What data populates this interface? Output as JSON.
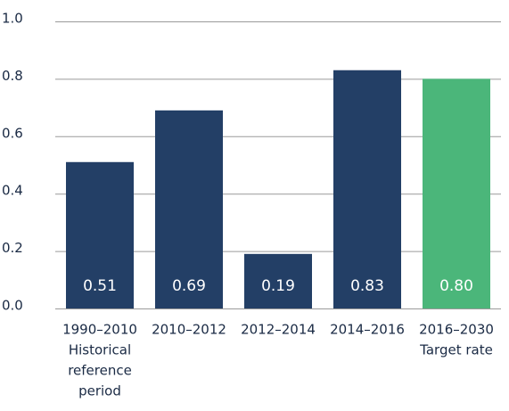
{
  "chart_data": {
    "type": "bar",
    "categories": [
      [
        "1990–2010",
        "Historical",
        "reference",
        "period"
      ],
      [
        "2010–2012"
      ],
      [
        "2012–2014"
      ],
      [
        "2014–2016"
      ],
      [
        "2016–2030",
        "Target rate"
      ]
    ],
    "values": [
      0.51,
      0.69,
      0.19,
      0.83,
      0.8
    ],
    "value_labels": [
      "0.51",
      "0.69",
      "0.19",
      "0.83",
      "0.80"
    ],
    "colors": [
      "#233f66",
      "#233f66",
      "#233f66",
      "#233f66",
      "#4bb67a"
    ],
    "ylim": [
      0,
      1
    ],
    "yticks": [
      {
        "value": 0,
        "label": "0.0"
      },
      0.2,
      0.4,
      0.6,
      0.8,
      {
        "value": 1,
        "label": "1.0"
      }
    ],
    "grid": true
  }
}
